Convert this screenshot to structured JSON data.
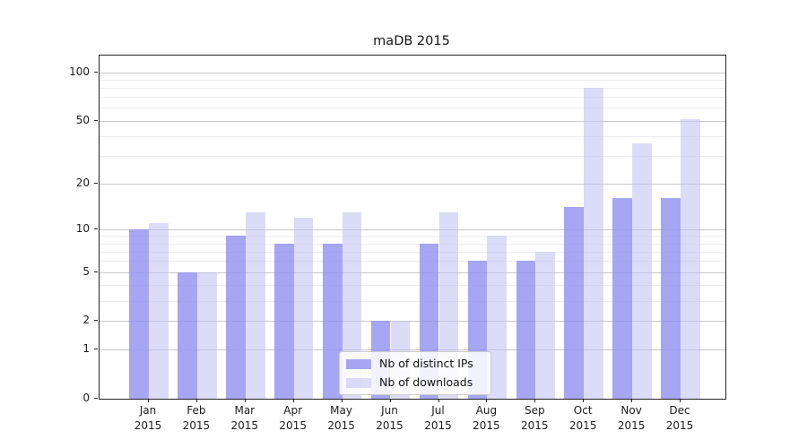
{
  "title": "maDB 2015",
  "colors": {
    "ips_bar": "#a6a6f2",
    "downloads_bar": "#dcdcf8",
    "ips_fill": "rgba(144,144,239,0.8)",
    "downloads_fill": "rgba(191,191,242,0.55)",
    "grid_major": "#c8c8c8",
    "grid_minor": "#ececec",
    "spine": "#222222",
    "text": "#1c1c1c",
    "legend_border": "#cccccc"
  },
  "chart_data": {
    "type": "bar",
    "title": "maDB 2015",
    "categories": [
      "Jan",
      "Feb",
      "Mar",
      "Apr",
      "May",
      "Jun",
      "Jul",
      "Aug",
      "Sep",
      "Oct",
      "Nov",
      "Dec"
    ],
    "year": "2015",
    "series": [
      {
        "name": "Nb of distinct IPs",
        "color": "#a6a6f2",
        "fill": "rgba(144,144,239,0.8)",
        "values": [
          10,
          5,
          9,
          8,
          8,
          2,
          8,
          6,
          6,
          14,
          16,
          16
        ]
      },
      {
        "name": "Nb of downloads",
        "color": "#dcdcf8",
        "fill": "rgba(191,191,242,0.55)",
        "values": [
          11,
          5,
          13,
          12,
          13,
          2,
          13,
          9,
          7,
          80,
          36,
          51
        ]
      }
    ],
    "xlabel": "",
    "ylabel": "",
    "y_scale": "log10(1+v)",
    "y_major_ticks": [
      0,
      1,
      2,
      5,
      10,
      20,
      50,
      100
    ],
    "y_minor_ticks": [
      3,
      4,
      6,
      7,
      8,
      9,
      30,
      40,
      60,
      70,
      80,
      90
    ],
    "ylim": [
      0,
      127
    ],
    "grid": true,
    "legend_position": "lower center",
    "legend": {
      "entries": [
        "Nb of distinct IPs",
        "Nb of downloads"
      ]
    }
  }
}
